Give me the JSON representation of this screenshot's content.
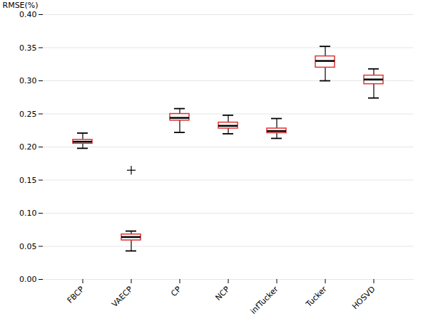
{
  "chart_data": {
    "type": "box",
    "categories": [
      "FBCP",
      "VAECP",
      "CP",
      "NCP",
      "infTucker",
      "Tucker",
      "HOSVD"
    ],
    "boxes": [
      {
        "whislo": 0.198,
        "q1": 0.205,
        "med": 0.208,
        "q3": 0.211,
        "whishi": 0.221,
        "fliers": []
      },
      {
        "whislo": 0.043,
        "q1": 0.059,
        "med": 0.064,
        "q3": 0.068,
        "whishi": 0.073,
        "fliers": [
          0.165
        ]
      },
      {
        "whislo": 0.222,
        "q1": 0.24,
        "med": 0.244,
        "q3": 0.25,
        "whishi": 0.258,
        "fliers": []
      },
      {
        "whislo": 0.22,
        "q1": 0.228,
        "med": 0.232,
        "q3": 0.237,
        "whishi": 0.248,
        "fliers": []
      },
      {
        "whislo": 0.213,
        "q1": 0.221,
        "med": 0.224,
        "q3": 0.228,
        "whishi": 0.243,
        "fliers": []
      },
      {
        "whislo": 0.3,
        "q1": 0.32,
        "med": 0.33,
        "q3": 0.337,
        "whishi": 0.352,
        "fliers": []
      },
      {
        "whislo": 0.274,
        "q1": 0.295,
        "med": 0.302,
        "q3": 0.308,
        "whishi": 0.318,
        "fliers": []
      }
    ],
    "ylabel": "RMSE(%)",
    "ylim": [
      0.0,
      0.4
    ],
    "yticks": [
      {
        "value": 0.0,
        "label": "0.00"
      },
      0.05,
      {
        "value": 0.1,
        "label": "0.10"
      },
      0.15,
      {
        "value": 0.2,
        "label": "0.20"
      },
      0.25,
      {
        "value": 0.3,
        "label": "0.30"
      },
      0.35,
      {
        "value": 0.4,
        "label": "0.40"
      }
    ],
    "color": "#e63030",
    "marker": "plus",
    "grid": true
  }
}
